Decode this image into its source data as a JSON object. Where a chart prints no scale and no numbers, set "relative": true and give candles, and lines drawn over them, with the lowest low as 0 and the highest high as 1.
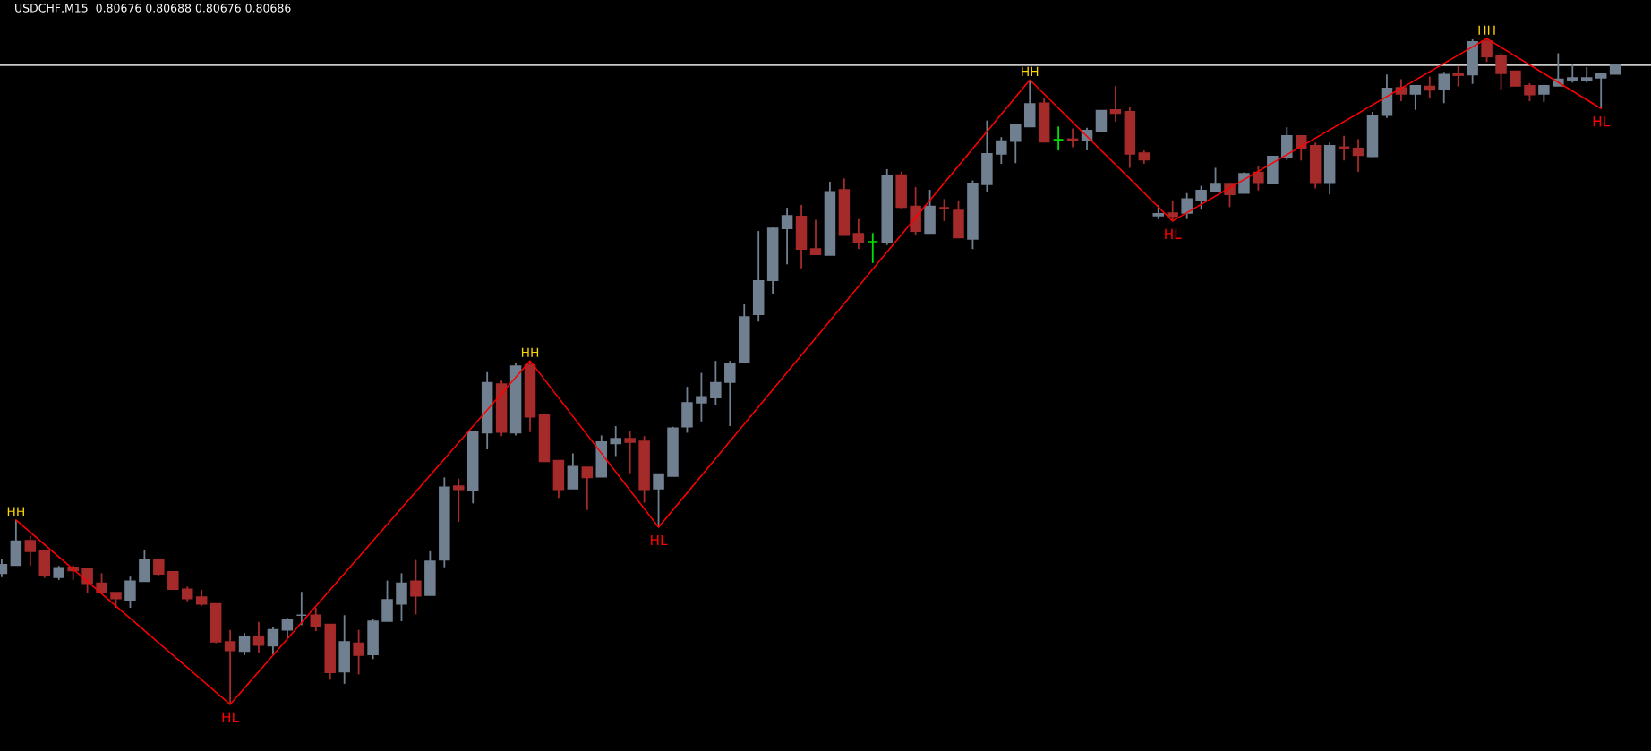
{
  "chart_data": {
    "type": "candlestick",
    "title": "USDCHF,M15  0.80676 0.80688 0.80676 0.80686",
    "relative": true,
    "categories": [
      null,
      null,
      null,
      null,
      null,
      null,
      null,
      null,
      null,
      null,
      null,
      null,
      null,
      null,
      null,
      null,
      null,
      null,
      null,
      null,
      null,
      null,
      null,
      null,
      null,
      null,
      null,
      null,
      null,
      null,
      null,
      null,
      null,
      null,
      null,
      null,
      null,
      null,
      null,
      null,
      null,
      null,
      null,
      null,
      null,
      null,
      null,
      null,
      null,
      null,
      null,
      null,
      null,
      null,
      null,
      null,
      null,
      null,
      null,
      null,
      null,
      null,
      null,
      null,
      null,
      null,
      null,
      null,
      null,
      null,
      null,
      null,
      null,
      null,
      null,
      null,
      null,
      null,
      null,
      null,
      null,
      null,
      null,
      null,
      null,
      null,
      null,
      null,
      null,
      null,
      null,
      null,
      null,
      null,
      null,
      null,
      null,
      null,
      null,
      null,
      null,
      null,
      null,
      null,
      null,
      null,
      null,
      null,
      null,
      null,
      null,
      null,
      null,
      null
    ],
    "ohlc": [
      [
        0.197,
        0.219,
        0.191,
        0.21
      ],
      [
        0.209,
        0.277,
        0.209,
        0.245
      ],
      [
        0.246,
        0.253,
        0.208,
        0.23
      ],
      [
        0.23,
        0.23,
        0.19,
        0.194
      ],
      [
        0.191,
        0.208,
        0.187,
        0.205
      ],
      [
        0.206,
        0.209,
        0.187,
        0.201
      ],
      [
        0.203,
        0.204,
        0.168,
        0.182
      ],
      [
        0.182,
        0.197,
        0.168,
        0.168
      ],
      [
        0.168,
        0.168,
        0.145,
        0.159
      ],
      [
        0.157,
        0.192,
        0.145,
        0.185
      ],
      [
        0.185,
        0.232,
        0.185,
        0.218
      ],
      [
        0.218,
        0.218,
        0.194,
        0.196
      ],
      [
        0.199,
        0.2,
        0.173,
        0.173
      ],
      [
        0.173,
        0.177,
        0.155,
        0.159
      ],
      [
        0.161,
        0.172,
        0.148,
        0.151
      ],
      [
        0.151,
        0.151,
        0.092,
        0.094
      ],
      [
        0.094,
        0.112,
        0.0,
        0.081
      ],
      [
        0.08,
        0.107,
        0.074,
        0.101
      ],
      [
        0.102,
        0.124,
        0.077,
        0.089
      ],
      [
        0.088,
        0.117,
        0.075,
        0.112
      ],
      [
        0.112,
        0.13,
        0.099,
        0.128
      ],
      [
        0.134,
        0.169,
        0.119,
        0.134
      ],
      [
        0.134,
        0.145,
        0.11,
        0.117
      ],
      [
        0.12,
        0.12,
        0.037,
        0.048
      ],
      [
        0.049,
        0.134,
        0.031,
        0.094
      ],
      [
        0.092,
        0.112,
        0.045,
        0.074
      ],
      [
        0.075,
        0.128,
        0.068,
        0.125
      ],
      [
        0.125,
        0.186,
        0.125,
        0.157
      ],
      [
        0.151,
        0.197,
        0.125,
        0.182
      ],
      [
        0.185,
        0.217,
        0.135,
        0.163
      ],
      [
        0.164,
        0.23,
        0.164,
        0.215
      ],
      [
        0.217,
        0.341,
        0.206,
        0.326
      ],
      [
        0.328,
        0.339,
        0.274,
        0.323
      ],
      [
        0.321,
        0.409,
        0.302,
        0.409
      ],
      [
        0.408,
        0.499,
        0.383,
        0.483
      ],
      [
        0.481,
        0.488,
        0.403,
        0.409
      ],
      [
        0.408,
        0.512,
        0.404,
        0.508
      ],
      [
        0.51,
        0.516,
        0.409,
        0.432
      ],
      [
        0.435,
        0.435,
        0.365,
        0.365
      ],
      [
        0.366,
        0.366,
        0.31,
        0.323
      ],
      [
        0.324,
        0.377,
        0.324,
        0.357
      ],
      [
        0.356,
        0.356,
        0.292,
        0.341
      ],
      [
        0.342,
        0.404,
        0.342,
        0.394
      ],
      [
        0.392,
        0.418,
        0.373,
        0.399
      ],
      [
        0.399,
        0.41,
        0.347,
        0.394
      ],
      [
        0.395,
        0.403,
        0.303,
        0.323
      ],
      [
        0.324,
        0.346,
        0.266,
        0.346
      ],
      [
        0.343,
        0.417,
        0.343,
        0.415
      ],
      [
        0.417,
        0.477,
        0.408,
        0.453
      ],
      [
        0.453,
        0.498,
        0.425,
        0.462
      ],
      [
        0.461,
        0.516,
        0.45,
        0.483
      ],
      [
        0.484,
        0.516,
        0.418,
        0.511
      ],
      [
        0.514,
        0.601,
        0.514,
        0.582
      ],
      [
        0.586,
        0.711,
        0.575,
        0.636
      ],
      [
        0.637,
        0.716,
        0.617,
        0.715
      ],
      [
        0.715,
        0.746,
        0.661,
        0.734
      ],
      [
        0.733,
        0.75,
        0.655,
        0.684
      ],
      [
        0.684,
        0.728,
        0.675,
        0.676
      ],
      [
        0.675,
        0.785,
        0.675,
        0.77
      ],
      [
        0.773,
        0.79,
        0.705,
        0.705
      ],
      [
        0.707,
        0.729,
        0.684,
        0.694
      ],
      [
        0.695,
        0.708,
        0.663,
        0.695
      ],
      [
        0.694,
        0.804,
        0.69,
        0.794
      ],
      [
        0.795,
        0.8,
        0.745,
        0.747
      ],
      [
        0.748,
        0.777,
        0.705,
        0.711
      ],
      [
        0.708,
        0.773,
        0.708,
        0.748
      ],
      [
        0.746,
        0.759,
        0.726,
        0.746
      ],
      [
        0.742,
        0.757,
        0.701,
        0.701
      ],
      [
        0.699,
        0.787,
        0.684,
        0.782
      ],
      [
        0.781,
        0.877,
        0.769,
        0.827
      ],
      [
        0.827,
        0.852,
        0.812,
        0.846
      ],
      [
        0.846,
        0.872,
        0.813,
        0.871
      ],
      [
        0.868,
        0.938,
        0.867,
        0.902
      ],
      [
        0.903,
        0.91,
        0.845,
        0.845
      ],
      [
        0.848,
        0.868,
        0.832,
        0.848
      ],
      [
        0.849,
        0.865,
        0.837,
        0.848
      ],
      [
        0.848,
        0.866,
        0.832,
        0.862
      ],
      [
        0.861,
        0.892,
        0.861,
        0.892
      ],
      [
        0.893,
        0.929,
        0.875,
        0.888
      ],
      [
        0.89,
        0.898,
        0.806,
        0.827
      ],
      [
        0.828,
        0.832,
        0.812,
        0.818
      ],
      [
        0.734,
        0.75,
        0.729,
        0.737
      ],
      [
        0.738,
        0.757,
        0.726,
        0.733
      ],
      [
        0.738,
        0.768,
        0.729,
        0.759
      ],
      [
        0.757,
        0.779,
        0.743,
        0.772
      ],
      [
        0.77,
        0.806,
        0.77,
        0.781
      ],
      [
        0.781,
        0.781,
        0.747,
        0.766
      ],
      [
        0.768,
        0.799,
        0.768,
        0.797
      ],
      [
        0.799,
        0.808,
        0.772,
        0.783
      ],
      [
        0.782,
        0.823,
        0.781,
        0.823
      ],
      [
        0.822,
        0.867,
        0.818,
        0.854
      ],
      [
        0.854,
        0.855,
        0.817,
        0.836
      ],
      [
        0.839,
        0.844,
        0.775,
        0.783
      ],
      [
        0.783,
        0.844,
        0.766,
        0.839
      ],
      [
        0.837,
        0.854,
        0.817,
        0.836
      ],
      [
        0.835,
        0.849,
        0.8,
        0.825
      ],
      [
        0.823,
        0.89,
        0.822,
        0.884
      ],
      [
        0.885,
        0.946,
        0.881,
        0.925
      ],
      [
        0.926,
        0.939,
        0.906,
        0.917
      ],
      [
        0.917,
        0.93,
        0.893,
        0.929
      ],
      [
        0.928,
        0.943,
        0.91,
        0.923
      ],
      [
        0.924,
        0.95,
        0.903,
        0.946
      ],
      [
        0.947,
        0.959,
        0.928,
        0.945
      ],
      [
        0.946,
        0.999,
        0.932,
        0.995
      ],
      [
        0.996,
        1.0,
        0.965,
        0.973
      ],
      [
        0.975,
        0.978,
        0.923,
        0.948
      ],
      [
        0.951,
        0.951,
        0.928,
        0.929
      ],
      [
        0.929,
        0.933,
        0.906,
        0.916
      ],
      [
        0.917,
        0.93,
        0.905,
        0.929
      ],
      [
        0.929,
        0.978,
        0.929,
        0.939
      ],
      [
        0.938,
        0.961,
        0.934,
        0.941
      ],
      [
        0.938,
        0.957,
        0.934,
        0.941
      ],
      [
        0.941,
        0.948,
        0.895,
        0.947
      ],
      [
        0.947,
        0.961,
        0.947,
        0.96
      ]
    ],
    "colors": [
      "#708090",
      "#708090",
      "#a52a2a",
      "#a52a2a",
      "#708090",
      "#a52a2a",
      "#a52a2a",
      "#a52a2a",
      "#a52a2a",
      "#708090",
      "#708090",
      "#a52a2a",
      "#a52a2a",
      "#a52a2a",
      "#a52a2a",
      "#a52a2a",
      "#a52a2a",
      "#708090",
      "#a52a2a",
      "#708090",
      "#708090",
      "#708090",
      "#a52a2a",
      "#a52a2a",
      "#708090",
      "#a52a2a",
      "#708090",
      "#708090",
      "#708090",
      "#a52a2a",
      "#708090",
      "#708090",
      "#a52a2a",
      "#708090",
      "#708090",
      "#a52a2a",
      "#708090",
      "#a52a2a",
      "#a52a2a",
      "#a52a2a",
      "#708090",
      "#a52a2a",
      "#708090",
      "#708090",
      "#a52a2a",
      "#a52a2a",
      "#708090",
      "#708090",
      "#708090",
      "#708090",
      "#708090",
      "#708090",
      "#708090",
      "#708090",
      "#708090",
      "#708090",
      "#a52a2a",
      "#a52a2a",
      "#708090",
      "#a52a2a",
      "#a52a2a",
      "#00e000",
      "#708090",
      "#a52a2a",
      "#a52a2a",
      "#708090",
      "#a52a2a",
      "#a52a2a",
      "#708090",
      "#708090",
      "#708090",
      "#708090",
      "#708090",
      "#a52a2a",
      "#00e000",
      "#a52a2a",
      "#708090",
      "#708090",
      "#a52a2a",
      "#a52a2a",
      "#a52a2a",
      "#708090",
      "#a52a2a",
      "#708090",
      "#708090",
      "#708090",
      "#a52a2a",
      "#708090",
      "#a52a2a",
      "#708090",
      "#708090",
      "#a52a2a",
      "#a52a2a",
      "#708090",
      "#a52a2a",
      "#a52a2a",
      "#708090",
      "#708090",
      "#a52a2a",
      "#708090",
      "#a52a2a",
      "#708090",
      "#a52a2a",
      "#708090",
      "#a52a2a",
      "#a52a2a",
      "#a52a2a",
      "#a52a2a",
      "#708090",
      "#708090",
      "#708090",
      "#708090",
      "#708090",
      "#708090"
    ],
    "series": [
      {
        "type": "line",
        "color": "#ff0000",
        "values": [
          null,
          0.277,
          null,
          null,
          null,
          null,
          null,
          null,
          null,
          null,
          null,
          null,
          null,
          null,
          null,
          null,
          0.0,
          null,
          null,
          null,
          null,
          null,
          null,
          null,
          null,
          null,
          null,
          null,
          null,
          null,
          null,
          null,
          null,
          null,
          null,
          null,
          null,
          0.516,
          null,
          null,
          null,
          null,
          null,
          null,
          null,
          null,
          0.266,
          null,
          null,
          null,
          null,
          null,
          null,
          null,
          null,
          null,
          null,
          null,
          null,
          null,
          null,
          null,
          null,
          null,
          null,
          null,
          null,
          null,
          null,
          null,
          null,
          null,
          0.938,
          null,
          null,
          null,
          null,
          null,
          null,
          null,
          null,
          null,
          0.726,
          null,
          null,
          null,
          null,
          null,
          null,
          null,
          null,
          null,
          null,
          null,
          null,
          null,
          null,
          null,
          null,
          null,
          null,
          null,
          null,
          null,
          1.0,
          null,
          null,
          null,
          null,
          null,
          null,
          null,
          0.895,
          null
        ]
      }
    ],
    "annotations": [
      "HH",
      "HL",
      "HH",
      "HL",
      "HH",
      "HL",
      "HH",
      "HL"
    ],
    "ref_lines": [
      {
        "axis": "y",
        "value": 0.96,
        "color": "#c8c8c8"
      }
    ]
  }
}
